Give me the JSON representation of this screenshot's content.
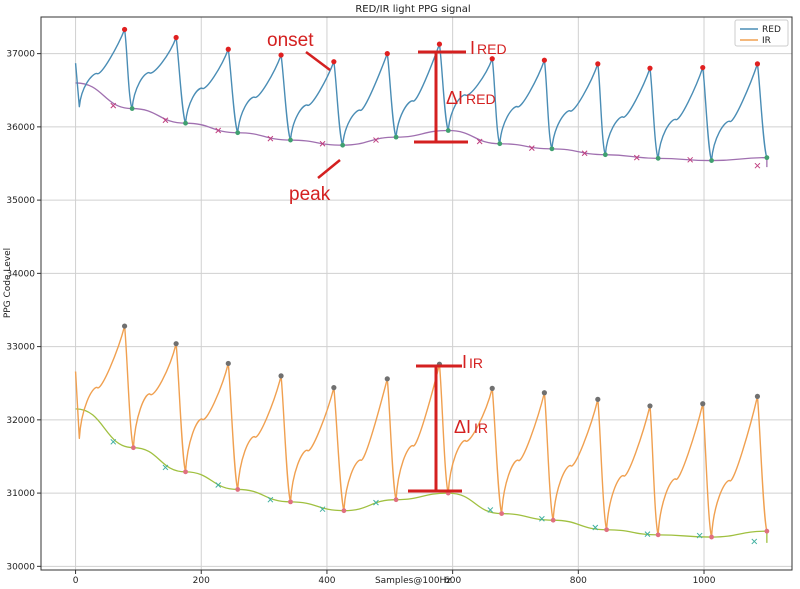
{
  "chart_data": {
    "type": "line",
    "title": "RED/IR light PPG signal",
    "xlabel": "Samples@100Hz",
    "ylabel": "PPG Code Level",
    "xlim": [
      -55,
      1140
    ],
    "ylim": [
      29950,
      37500
    ],
    "xticks": [
      0,
      200,
      400,
      600,
      800,
      1000
    ],
    "yticks": [
      30000,
      31000,
      32000,
      33000,
      34000,
      35000,
      36000,
      37000
    ],
    "grid": true,
    "legend_position": "top-right",
    "colors": {
      "red_line": "#4a8db5",
      "ir_line": "#f0a050",
      "red_baseline": "#a070b0",
      "ir_baseline": "#a0c040",
      "peak_marker": "#e02020",
      "ir_peak_marker": "#707070",
      "onset_marker": "#40a070",
      "annotation": "#d42020"
    },
    "series": [
      {
        "name": "RED",
        "baseline_start": 36600,
        "baseline_end": 35450,
        "beats": [
          {
            "onset_x": 90,
            "onset_y": 36250,
            "peak_x": 78,
            "peak_y": 37330
          },
          {
            "onset_x": 175,
            "onset_y": 36050,
            "peak_x": 160,
            "peak_y": 37220
          },
          {
            "onset_x": 258,
            "onset_y": 35920,
            "peak_x": 243,
            "peak_y": 37060
          },
          {
            "onset_x": 342,
            "onset_y": 35820,
            "peak_x": 327,
            "peak_y": 36980
          },
          {
            "onset_x": 425,
            "onset_y": 35750,
            "peak_x": 411,
            "peak_y": 36890
          },
          {
            "onset_x": 510,
            "onset_y": 35860,
            "peak_x": 496,
            "peak_y": 37000
          },
          {
            "onset_x": 593,
            "onset_y": 35950,
            "peak_x": 579,
            "peak_y": 37130
          },
          {
            "onset_x": 675,
            "onset_y": 35770,
            "peak_x": 663,
            "peak_y": 36930
          },
          {
            "onset_x": 758,
            "onset_y": 35700,
            "peak_x": 746,
            "peak_y": 36910
          },
          {
            "onset_x": 843,
            "onset_y": 35620,
            "peak_x": 831,
            "peak_y": 36860
          },
          {
            "onset_x": 927,
            "onset_y": 35570,
            "peak_x": 914,
            "peak_y": 36800
          },
          {
            "onset_x": 1012,
            "onset_y": 35540,
            "peak_x": 998,
            "peak_y": 36810
          },
          {
            "onset_x": 1100,
            "onset_y": 35580,
            "peak_x": 1085,
            "peak_y": 36860
          }
        ],
        "start_y": 36870,
        "baseline_markers": [
          [
            60,
            36290
          ],
          [
            143,
            36090
          ],
          [
            227,
            35950
          ],
          [
            310,
            35840
          ],
          [
            393,
            35770
          ],
          [
            478,
            35820
          ],
          [
            643,
            35800
          ],
          [
            726,
            35710
          ],
          [
            810,
            35640
          ],
          [
            893,
            35580
          ],
          [
            978,
            35550
          ],
          [
            1085,
            35470
          ]
        ]
      },
      {
        "name": "IR",
        "baseline_start": 32150,
        "baseline_end": 30320,
        "beats": [
          {
            "onset_x": 92,
            "onset_y": 31620,
            "peak_x": 78,
            "peak_y": 33280
          },
          {
            "onset_x": 175,
            "onset_y": 31290,
            "peak_x": 160,
            "peak_y": 33040
          },
          {
            "onset_x": 258,
            "onset_y": 31050,
            "peak_x": 243,
            "peak_y": 32770
          },
          {
            "onset_x": 342,
            "onset_y": 30880,
            "peak_x": 327,
            "peak_y": 32600
          },
          {
            "onset_x": 427,
            "onset_y": 30760,
            "peak_x": 411,
            "peak_y": 32440
          },
          {
            "onset_x": 510,
            "onset_y": 30910,
            "peak_x": 496,
            "peak_y": 32560
          },
          {
            "onset_x": 593,
            "onset_y": 31000,
            "peak_x": 579,
            "peak_y": 32760
          },
          {
            "onset_x": 678,
            "onset_y": 30720,
            "peak_x": 663,
            "peak_y": 32430
          },
          {
            "onset_x": 760,
            "onset_y": 30630,
            "peak_x": 746,
            "peak_y": 32370
          },
          {
            "onset_x": 845,
            "onset_y": 30500,
            "peak_x": 831,
            "peak_y": 32280
          },
          {
            "onset_x": 927,
            "onset_y": 30430,
            "peak_x": 914,
            "peak_y": 32190
          },
          {
            "onset_x": 1012,
            "onset_y": 30400,
            "peak_x": 998,
            "peak_y": 32220
          },
          {
            "onset_x": 1100,
            "onset_y": 30480,
            "peak_x": 1085,
            "peak_y": 32320
          }
        ],
        "start_y": 32660,
        "baseline_markers": [
          [
            60,
            31700
          ],
          [
            143,
            31350
          ],
          [
            227,
            31110
          ],
          [
            310,
            30910
          ],
          [
            393,
            30780
          ],
          [
            478,
            30870
          ],
          [
            660,
            30770
          ],
          [
            742,
            30650
          ],
          [
            827,
            30530
          ],
          [
            910,
            30440
          ],
          [
            993,
            30420
          ],
          [
            1080,
            30340
          ]
        ]
      }
    ],
    "legend": [
      {
        "label": "RED",
        "color": "#4a8db5"
      },
      {
        "label": "IR",
        "color": "#f0a050"
      }
    ],
    "annotations": {
      "onset": "onset",
      "peak": "peak",
      "i_red_main": "I",
      "i_red_sub": "RED",
      "delta_i_red_main": "ΔI",
      "delta_i_red_sub": "RED",
      "i_ir_main": "I",
      "i_ir_sub": "IR",
      "delta_i_ir_main": "ΔI",
      "delta_i_ir_sub": "IR"
    }
  }
}
